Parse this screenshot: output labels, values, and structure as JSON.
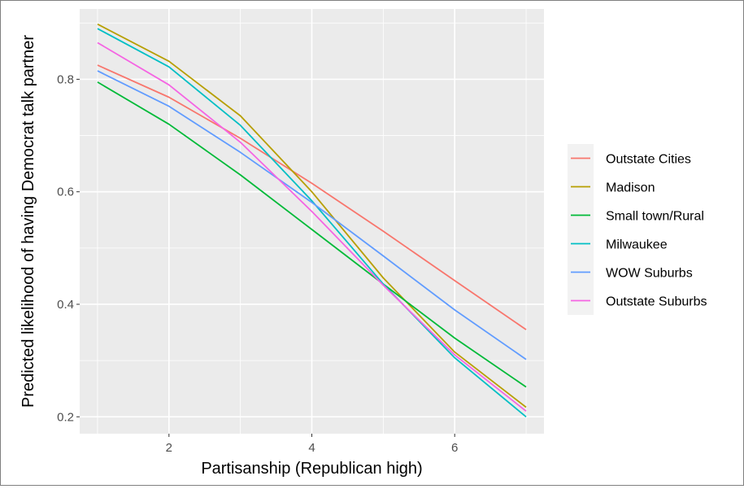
{
  "chart_data": {
    "type": "line",
    "title": "",
    "xlabel": "Partisanship (Republican high)",
    "ylabel": "Predicted likelihood of having Democrat talk partner",
    "xlim": [
      0.75,
      7.25
    ],
    "ylim": [
      0.17,
      0.925
    ],
    "x_ticks": [
      2,
      4,
      6
    ],
    "y_ticks": [
      0.2,
      0.4,
      0.6,
      0.8
    ],
    "x_tick_labels": [
      "2",
      "4",
      "6"
    ],
    "y_tick_labels": [
      "0.2",
      "0.4",
      "0.6",
      "0.8"
    ],
    "grid": true,
    "legend_position": "right",
    "x": [
      1,
      2,
      3,
      4,
      5,
      6,
      7
    ],
    "series": [
      {
        "name": "Outstate Cities",
        "color": "#F8766D",
        "values": [
          0.825,
          0.768,
          0.695,
          0.615,
          0.53,
          0.442,
          0.355
        ]
      },
      {
        "name": "Madison",
        "color": "#B79F00",
        "values": [
          0.898,
          0.832,
          0.735,
          0.6,
          0.447,
          0.315,
          0.217
        ]
      },
      {
        "name": "Small town/Rural",
        "color": "#00BA38",
        "values": [
          0.795,
          0.72,
          0.63,
          0.533,
          0.436,
          0.34,
          0.253
        ]
      },
      {
        "name": "Milwaukee",
        "color": "#00BFC4",
        "values": [
          0.89,
          0.822,
          0.718,
          0.584,
          0.436,
          0.305,
          0.2
        ]
      },
      {
        "name": "WOW Suburbs",
        "color": "#619CFF",
        "values": [
          0.815,
          0.752,
          0.67,
          0.581,
          0.486,
          0.39,
          0.302
        ]
      },
      {
        "name": "Outstate Suburbs",
        "color": "#F564E3",
        "values": [
          0.865,
          0.79,
          0.688,
          0.565,
          0.434,
          0.31,
          0.21
        ]
      }
    ]
  }
}
